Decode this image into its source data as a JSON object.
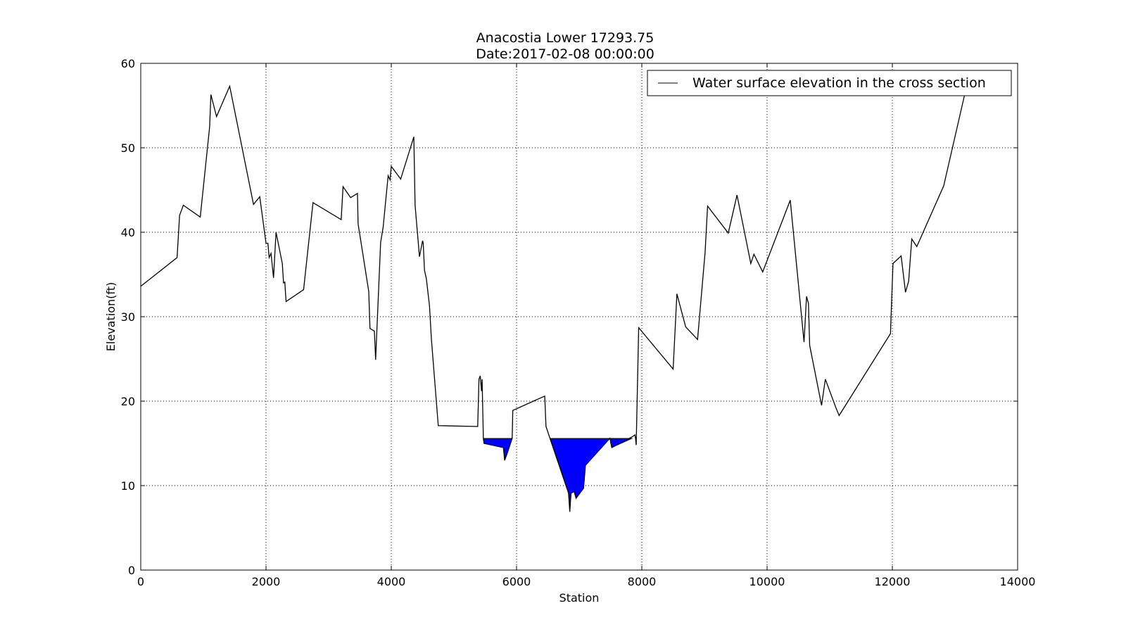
{
  "chart_data": {
    "type": "line",
    "title": "Anacostia Lower 17293.75",
    "subtitle": "Date:2017-02-08 00:00:00",
    "xlabel": "Station",
    "ylabel": "Elevation(ft)",
    "xlim": [
      0,
      14000
    ],
    "ylim": [
      0,
      60
    ],
    "x_ticks": [
      0,
      2000,
      4000,
      6000,
      8000,
      10000,
      12000,
      14000
    ],
    "y_ticks": [
      0,
      10,
      20,
      30,
      40,
      50,
      60
    ],
    "x_tick_labels": [
      "0",
      "2000",
      "4000",
      "6000",
      "8000",
      "10000",
      "12000",
      "14000"
    ],
    "y_tick_labels": [
      "0",
      "10",
      "20",
      "30",
      "40",
      "50",
      "60"
    ],
    "grid": true,
    "legend_position": "top-right",
    "colors": {
      "ground_line": "#000000",
      "water_fill": "#0000ff",
      "grid": "#000000"
    },
    "series": [
      {
        "name": "Water surface elevation in the cross section",
        "style": "line",
        "x": [
          0,
          580,
          620,
          680,
          950,
          1100,
          1120,
          1210,
          1420,
          1800,
          1900,
          2000,
          2030,
          2050,
          2080,
          2120,
          2160,
          2260,
          2280,
          2300,
          2320,
          2600,
          2750,
          3200,
          3230,
          3350,
          3460,
          3470,
          3640,
          3660,
          3730,
          3750,
          3830,
          3870,
          3950,
          3980,
          4000,
          4150,
          4360,
          4380,
          4450,
          4500,
          4510,
          4530,
          4560,
          4610,
          4640,
          4750,
          5380,
          5400,
          5420,
          5440,
          5450,
          5470,
          5480,
          5790,
          5810,
          5850,
          5930,
          5940,
          6450,
          6470,
          6830,
          6850,
          6870,
          6920,
          6950,
          7070,
          7100,
          7490,
          7520,
          7850,
          7890,
          7900,
          7910,
          7950,
          8500,
          8560,
          8700,
          8890,
          9010,
          9050,
          9380,
          9520,
          9740,
          9790,
          9930,
          10370,
          10590,
          10630,
          10660,
          10680,
          10870,
          10930,
          11100,
          11150,
          11970,
          12010,
          12140,
          12210,
          12260,
          12310,
          12390,
          12820,
          13170,
          13180
        ],
        "y": [
          33.6,
          37.0,
          42.0,
          43.2,
          41.8,
          52.5,
          56.3,
          53.7,
          57.3,
          43.3,
          44.2,
          38.7,
          38.7,
          37.0,
          37.5,
          34.6,
          40.0,
          36.3,
          34.0,
          34.1,
          31.8,
          33.2,
          43.5,
          41.5,
          45.4,
          44.1,
          44.6,
          41.0,
          33.0,
          28.6,
          28.3,
          24.9,
          38.8,
          40.6,
          46.7,
          46.2,
          47.8,
          46.3,
          51.3,
          43.2,
          37.1,
          39.0,
          38.7,
          35.5,
          34.5,
          31.3,
          27.4,
          17.1,
          17.0,
          22.6,
          23.0,
          21.2,
          22.6,
          15.6,
          15.0,
          14.5,
          13.0,
          13.8,
          15.6,
          18.9,
          20.6,
          17.0,
          9.1,
          6.9,
          9.1,
          9.3,
          8.5,
          9.7,
          12.4,
          15.6,
          14.5,
          15.8,
          16.0,
          15.6,
          14.8,
          28.7,
          23.8,
          32.7,
          28.8,
          27.3,
          37.6,
          43.1,
          39.9,
          44.4,
          36.3,
          37.4,
          35.3,
          43.8,
          27.0,
          32.4,
          31.6,
          26.6,
          19.5,
          22.6,
          19.2,
          18.3,
          28.0,
          36.3,
          37.2,
          32.9,
          34.2,
          39.2,
          38.3,
          45.5,
          56.8,
          57.0
        ]
      }
    ],
    "water_surface": {
      "elevation": 15.6,
      "pools": [
        {
          "x": [
            5470,
            5480,
            5790,
            5810,
            5850,
            5930
          ],
          "y": [
            15.6,
            15.0,
            14.5,
            13.0,
            13.8,
            15.6
          ]
        },
        {
          "x": [
            6530,
            6830,
            6850,
            6870,
            6920,
            6950,
            7070,
            7100,
            7490
          ],
          "y": [
            15.6,
            9.1,
            6.9,
            9.1,
            9.3,
            8.5,
            9.7,
            12.4,
            15.6
          ]
        },
        {
          "x": [
            7490,
            7520,
            7850
          ],
          "y": [
            15.6,
            14.5,
            15.6
          ]
        }
      ]
    }
  }
}
